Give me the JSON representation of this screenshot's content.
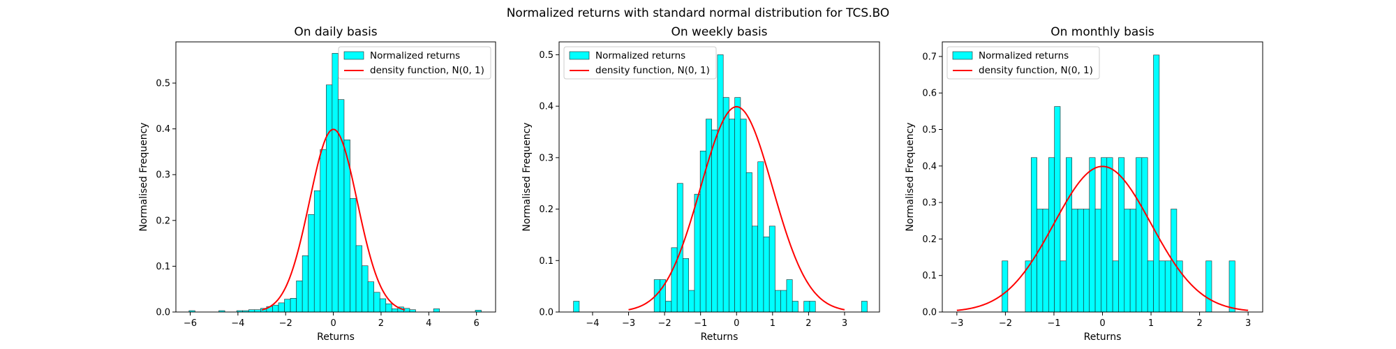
{
  "figure": {
    "suptitle": "Normalized returns with standard normal distribution for TCS.BO"
  },
  "chart_data": [
    {
      "type": "bar",
      "title": "On daily basis",
      "xlabel": "Returns",
      "ylabel": "Normalised Frequency",
      "xlim": [
        -6.6,
        6.8
      ],
      "ylim": [
        0,
        0.59
      ],
      "xticks": [
        -6,
        -4,
        -2,
        0,
        2,
        4,
        6
      ],
      "yticks": [
        0.0,
        0.1,
        0.2,
        0.3,
        0.4,
        0.5
      ],
      "ytick_labels": [
        "0.0",
        "0.1",
        "0.2",
        "0.3",
        "0.4",
        "0.5"
      ],
      "bin_edges": [
        -6.05,
        -5.8,
        -5.55,
        -5.3,
        -5.05,
        -4.8,
        -4.55,
        -4.3,
        -4.05,
        -3.8,
        -3.55,
        -3.3,
        -3.05,
        -2.8,
        -2.55,
        -2.3,
        -2.05,
        -1.8,
        -1.55,
        -1.3,
        -1.05,
        -0.8,
        -0.55,
        -0.3,
        -0.05,
        0.2,
        0.45,
        0.7,
        0.95,
        1.2,
        1.45,
        1.7,
        1.95,
        2.2,
        2.45,
        2.7,
        2.95,
        3.2,
        3.45,
        3.7,
        3.95,
        4.2,
        4.45,
        4.7,
        4.95,
        5.2,
        5.45,
        5.7,
        5.95,
        6.2,
        6.45
      ],
      "values": [
        0.003,
        0,
        0,
        0,
        0,
        0.003,
        0,
        0,
        0.003,
        0.003,
        0.005,
        0.005,
        0.008,
        0.012,
        0.015,
        0.02,
        0.028,
        0.03,
        0.068,
        0.123,
        0.213,
        0.265,
        0.355,
        0.496,
        0.565,
        0.464,
        0.376,
        0.248,
        0.145,
        0.101,
        0.066,
        0.043,
        0.029,
        0.018,
        0.007,
        0.011,
        0.008,
        0.005,
        0,
        0,
        0,
        0.007,
        0,
        0,
        0,
        0,
        0,
        0,
        0.004,
        0
      ],
      "series": [
        {
          "name": "Normalized returns",
          "kind": "histogram",
          "color": "#00ffff"
        },
        {
          "name": "density function, N(0, 1)",
          "kind": "line",
          "color": "#ff0000",
          "function": "normal_pdf",
          "mu": 0,
          "sigma": 1,
          "x_range": [
            -3,
            3
          ]
        }
      ],
      "legend": "upper-right"
    },
    {
      "type": "bar",
      "title": "On weekly basis",
      "xlabel": "Returns",
      "ylabel": "Normalised Frequency",
      "xlim": [
        -4.93,
        3.97
      ],
      "ylim": [
        0,
        0.525
      ],
      "xticks": [
        -4,
        -3,
        -2,
        -1,
        0,
        1,
        2,
        3
      ],
      "yticks": [
        0.0,
        0.1,
        0.2,
        0.3,
        0.4,
        0.5
      ],
      "ytick_labels": [
        "0.0",
        "0.1",
        "0.2",
        "0.3",
        "0.4",
        "0.5"
      ],
      "bin_edges": [
        -4.53,
        -4.37,
        -4.21,
        -4.05,
        -3.89,
        -3.73,
        -3.57,
        -3.41,
        -3.25,
        -3.09,
        -2.93,
        -2.77,
        -2.61,
        -2.45,
        -2.29,
        -2.13,
        -1.97,
        -1.81,
        -1.65,
        -1.49,
        -1.33,
        -1.17,
        -1.01,
        -0.85,
        -0.69,
        -0.53,
        -0.37,
        -0.21,
        -0.05,
        0.11,
        0.27,
        0.43,
        0.59,
        0.75,
        0.91,
        1.07,
        1.23,
        1.39,
        1.55,
        1.71,
        1.87,
        2.03,
        2.19,
        2.35,
        2.51,
        2.67,
        2.83,
        2.99,
        3.15,
        3.31,
        3.47,
        3.63
      ],
      "values": [
        0.021,
        0,
        0,
        0,
        0,
        0,
        0,
        0,
        0,
        0,
        0,
        0,
        0,
        0,
        0.063,
        0.063,
        0.021,
        0.125,
        0.25,
        0.104,
        0.042,
        0.229,
        0.313,
        0.375,
        0.354,
        0.5,
        0.417,
        0.375,
        0.417,
        0.375,
        0.271,
        0.167,
        0.292,
        0.146,
        0.167,
        0.042,
        0.042,
        0.063,
        0.021,
        0,
        0.021,
        0.021,
        0,
        0,
        0,
        0,
        0,
        0,
        0,
        0,
        0.021
      ],
      "series": [
        {
          "name": "Normalized returns",
          "kind": "histogram",
          "color": "#00ffff"
        },
        {
          "name": "density function, N(0, 1)",
          "kind": "line",
          "color": "#ff0000",
          "function": "normal_pdf",
          "mu": 0,
          "sigma": 1,
          "x_range": [
            -3,
            3
          ]
        }
      ],
      "legend": "upper-left"
    },
    {
      "type": "bar",
      "title": "On monthly basis",
      "xlabel": "Returns",
      "ylabel": "Normalised Frequency",
      "xlim": [
        -3.3,
        3.3
      ],
      "ylim": [
        0,
        0.74
      ],
      "xticks": [
        -3,
        -2,
        -1,
        0,
        1,
        2,
        3
      ],
      "yticks": [
        0.0,
        0.1,
        0.2,
        0.3,
        0.4,
        0.5,
        0.6,
        0.7
      ],
      "ytick_labels": [
        "0.0",
        "0.1",
        "0.2",
        "0.3",
        "0.4",
        "0.5",
        "0.6",
        "0.7"
      ],
      "bin_edges": [
        -2.07,
        -1.95,
        -1.83,
        -1.71,
        -1.59,
        -1.47,
        -1.35,
        -1.23,
        -1.11,
        -0.99,
        -0.87,
        -0.75,
        -0.63,
        -0.51,
        -0.39,
        -0.27,
        -0.15,
        -0.03,
        0.09,
        0.21,
        0.33,
        0.45,
        0.57,
        0.69,
        0.81,
        0.93,
        1.05,
        1.17,
        1.29,
        1.41,
        1.53,
        1.65,
        1.77,
        1.89,
        2.01,
        2.13,
        2.25,
        2.37,
        2.49,
        2.61,
        2.73,
        2.85
      ],
      "values": [
        0.14,
        0,
        0,
        0,
        0.14,
        0.423,
        0.282,
        0.282,
        0.423,
        0.563,
        0.14,
        0.423,
        0.282,
        0.282,
        0.282,
        0.423,
        0.282,
        0.423,
        0.423,
        0.14,
        0.423,
        0.282,
        0.282,
        0.423,
        0.423,
        0.14,
        0.704,
        0.14,
        0.14,
        0.282,
        0.14,
        0,
        0,
        0,
        0,
        0.14,
        0,
        0,
        0,
        0.14,
        0
      ],
      "series": [
        {
          "name": "Normalized returns",
          "kind": "histogram",
          "color": "#00ffff"
        },
        {
          "name": "density function, N(0, 1)",
          "kind": "line",
          "color": "#ff0000",
          "function": "normal_pdf",
          "mu": 0,
          "sigma": 1,
          "x_range": [
            -3,
            3
          ]
        }
      ],
      "legend": "upper-left"
    }
  ]
}
